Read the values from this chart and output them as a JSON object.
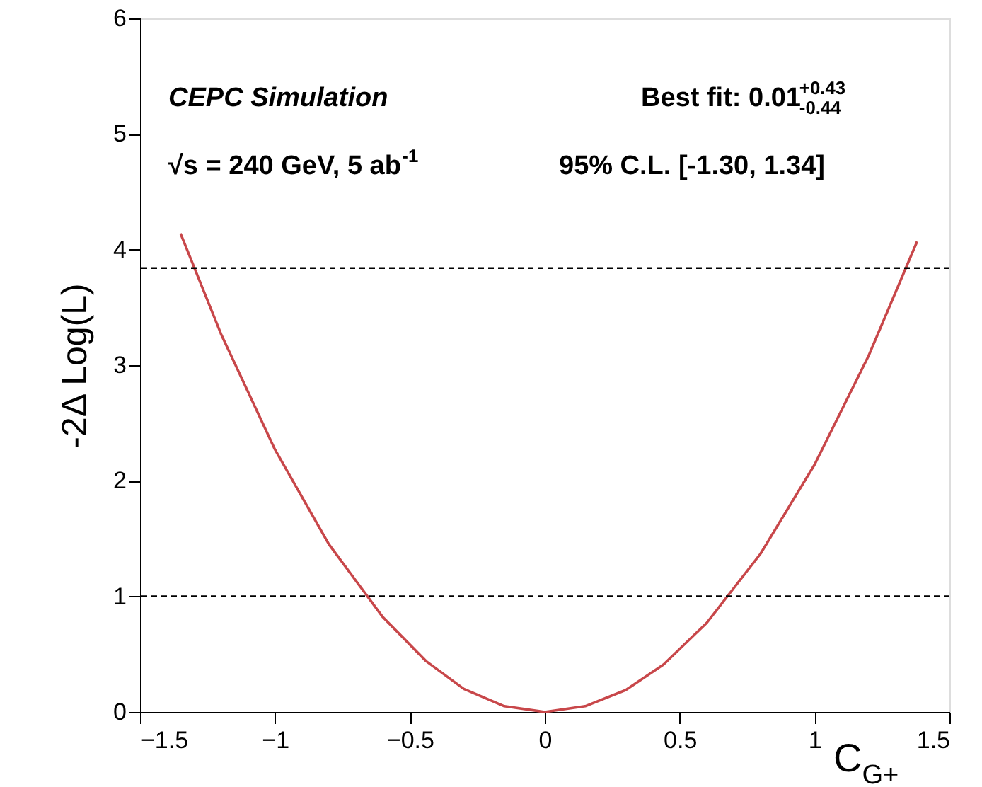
{
  "chart_data": {
    "type": "line",
    "xlabel": "C$_{G+}$",
    "ylabel": "-2Δ Log(L)",
    "annotations": [
      "CEPC   Simulation",
      "Best fit: 0.01$^{+0.43}$$_{-0.44}$",
      "√s = 240 GeV, 5 ab$^{-1}$",
      "95% C.L. [-1.30, 1.34]"
    ],
    "series": [
      {
        "color": "#c8474a",
        "x": [
          -1.35,
          -1.2,
          -1.0,
          -0.8,
          -0.6,
          -0.44,
          -0.3,
          -0.15,
          0,
          0.15,
          0.3,
          0.44,
          0.6,
          0.8,
          1.0,
          1.2,
          1.38
        ],
        "values": [
          4.14,
          3.27,
          2.27,
          1.45,
          0.82,
          0.44,
          0.2,
          0.05,
          0,
          0.05,
          0.19,
          0.41,
          0.77,
          1.37,
          2.14,
          3.08,
          4.07
        ]
      }
    ],
    "xlim": [
      -1.5,
      1.5
    ],
    "ylim": [
      0,
      6
    ],
    "xticks": [
      {
        "value": -1.5,
        "label": "−1.5"
      },
      {
        "value": -1,
        "label": "−1"
      },
      {
        "value": -0.5,
        "label": "−0.5"
      },
      0,
      0.5,
      1,
      1.5
    ],
    "yticks": [
      0,
      1,
      2,
      3,
      4,
      5,
      6
    ],
    "ref_lines": [
      {
        "axis": "y",
        "value": 3.84,
        "color": "#000000",
        "line_style": "dashed"
      },
      {
        "axis": "y",
        "value": 1,
        "color": "#000000",
        "line_style": "dashed"
      }
    ],
    "grid": false
  }
}
